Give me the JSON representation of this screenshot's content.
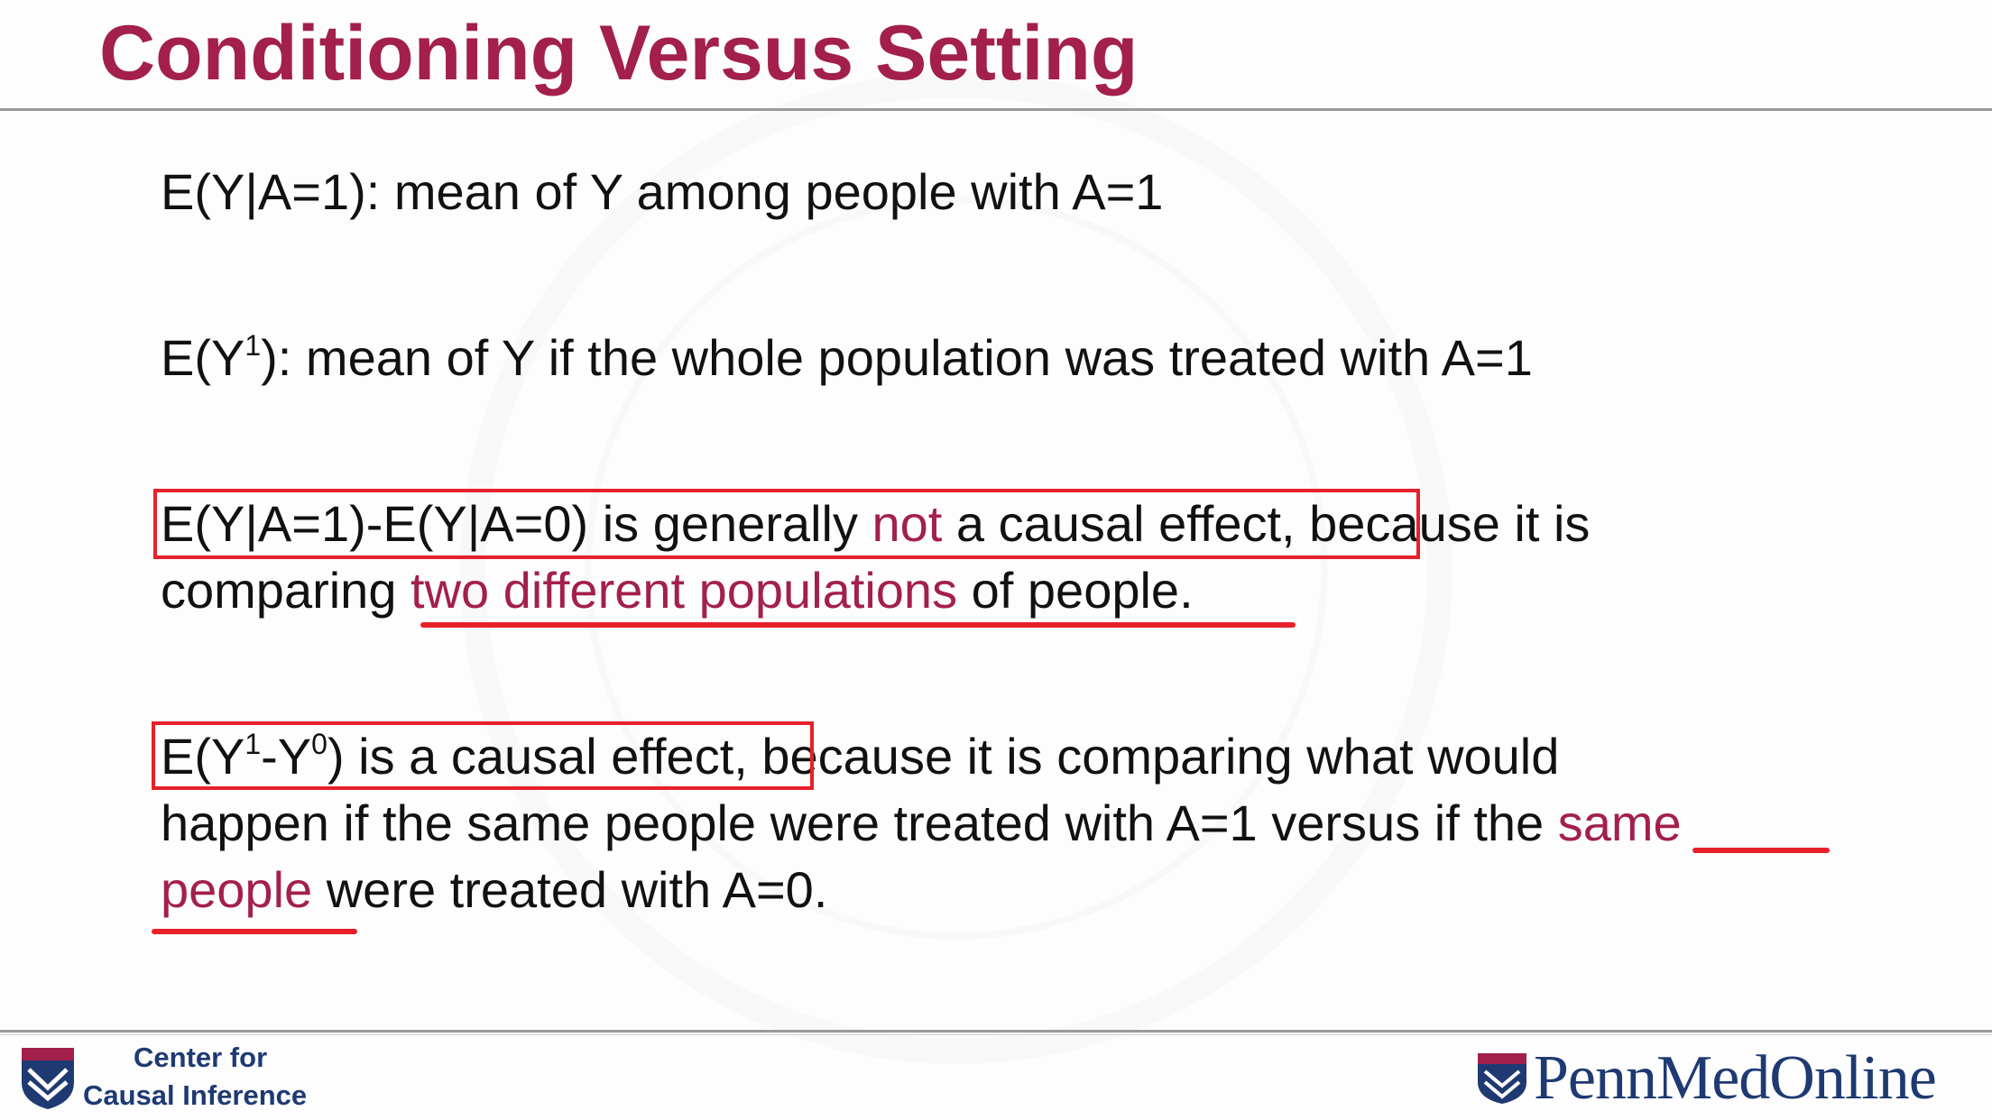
{
  "slide": {
    "title": "Conditioning Versus Setting"
  },
  "paragraphs": {
    "p1": {
      "text": "E(Y|A=1): mean of Y among people with A=1"
    },
    "p2": {
      "before_sup": "E(Y",
      "sup": "1",
      "after_sup": "): mean of Y if the whole population was treated with A=1"
    },
    "p3": {
      "part1": "E(Y|A=1)-E(Y|A=0) is generally ",
      "highlight1": "not",
      "part2": " a causal effect, because it is",
      "part3": "comparing ",
      "highlight2": "two different populations",
      "part4": " of people."
    },
    "p4": {
      "part1": "E(Y",
      "sup1": "1",
      "part2": "-Y",
      "sup2": "0",
      "part3": ") is a causal effect, because it is comparing what would",
      "line2_part1": "happen if the same people were treated with A=1 versus if the ",
      "highlight1": "same",
      "highlight2": "people",
      "line3_part2": " were treated with A=0."
    }
  },
  "footer": {
    "center_line1": "Center for",
    "center_line2": "Causal Inference",
    "brand": "PennMedOnline"
  },
  "colors": {
    "title": "#a31f4c",
    "highlight": "#a31f4c",
    "annotation": "#e8202a",
    "brand": "#1f3a72"
  }
}
